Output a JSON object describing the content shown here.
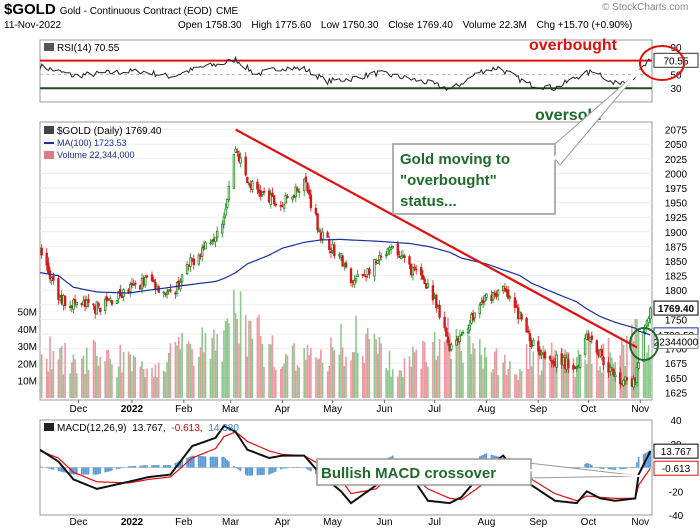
{
  "header": {
    "symbol": "$GOLD",
    "name": "Gold - Continuous Contract (EOD)",
    "exchange": "CME",
    "date": "11-Nov-2022",
    "open_label": "Open",
    "open": "1758.30",
    "high_label": "High",
    "high": "1775.60",
    "low_label": "Low",
    "low": "1750.30",
    "close_label": "Close",
    "close": "1769.40",
    "volume_label": "Volume",
    "volume": "22.3M",
    "change": "Chg +15.70 (+0.90%)",
    "watermark": "© StockCharts.com"
  },
  "chart_data": [
    {
      "type": "line",
      "panel": "rsi",
      "legend": "RSI(14) 70.55",
      "ylim": [
        10,
        100
      ],
      "ticks": [
        90,
        70,
        50,
        30
      ],
      "levels": [
        70,
        30
      ],
      "last_value_label": "70.55",
      "annotations": [
        "overbought",
        "oversold"
      ],
      "x": [
        "2021-11-11",
        "2021-12-01",
        "2021-12-20",
        "2022-01-10",
        "2022-01-28",
        "2022-02-15",
        "2022-03-01",
        "2022-03-08",
        "2022-03-20",
        "2022-04-05",
        "2022-04-18",
        "2022-05-02",
        "2022-05-16",
        "2022-06-01",
        "2022-06-15",
        "2022-07-01",
        "2022-07-15",
        "2022-08-01",
        "2022-08-12",
        "2022-08-30",
        "2022-09-15",
        "2022-10-01",
        "2022-10-10",
        "2022-10-20",
        "2022-11-01",
        "2022-11-11"
      ],
      "values": [
        62,
        48,
        52,
        55,
        47,
        60,
        66,
        72,
        50,
        60,
        58,
        40,
        44,
        52,
        46,
        38,
        28,
        54,
        60,
        36,
        30,
        50,
        55,
        36,
        46,
        70.55
      ]
    },
    {
      "type": "candlestick",
      "panel": "price",
      "legend": [
        "$GOLD (Daily) 1769.40",
        "MA(100) 1723.53",
        "Volume 22,344,000"
      ],
      "ylim": [
        1612,
        2088
      ],
      "ticks": [
        2075,
        2050,
        2025,
        2000,
        1975,
        1950,
        1925,
        1900,
        1875,
        1850,
        1825,
        1800,
        1775,
        1750,
        1725,
        1700,
        1675,
        1650,
        1625
      ],
      "x_labels": [
        "Dec",
        "2022",
        "Feb",
        "Mar",
        "Apr",
        "May",
        "Jun",
        "Jul",
        "Aug",
        "Sep",
        "Oct",
        "Nov"
      ],
      "x": [
        "2021-11-11",
        "2021-11-22",
        "2021-12-01",
        "2021-12-15",
        "2022-01-03",
        "2022-01-15",
        "2022-01-28",
        "2022-02-10",
        "2022-02-24",
        "2022-03-01",
        "2022-03-08",
        "2022-03-15",
        "2022-03-28",
        "2022-04-05",
        "2022-04-18",
        "2022-04-28",
        "2022-05-10",
        "2022-05-16",
        "2022-05-31",
        "2022-06-10",
        "2022-06-20",
        "2022-07-01",
        "2022-07-14",
        "2022-07-21",
        "2022-08-05",
        "2022-08-15",
        "2022-08-25",
        "2022-09-01",
        "2022-09-15",
        "2022-09-28",
        "2022-10-04",
        "2022-10-12",
        "2022-10-21",
        "2022-11-02",
        "2022-11-04",
        "2022-11-11"
      ],
      "close": [
        1868,
        1785,
        1778,
        1770,
        1800,
        1820,
        1790,
        1850,
        1900,
        1930,
        2045,
        1985,
        1955,
        1945,
        1990,
        1895,
        1855,
        1810,
        1845,
        1870,
        1840,
        1810,
        1705,
        1725,
        1790,
        1800,
        1755,
        1710,
        1680,
        1670,
        1730,
        1690,
        1650,
        1640,
        1680,
        1769.4
      ],
      "ma_100": {
        "name": "MA(100)",
        "last": "1723.53",
        "values": [
          1830,
          1825,
          1805,
          1797,
          1795,
          1800,
          1805,
          1810,
          1815,
          1820,
          1830,
          1845,
          1860,
          1872,
          1882,
          1886,
          1887,
          1886,
          1884,
          1882,
          1880,
          1875,
          1865,
          1855,
          1845,
          1835,
          1825,
          1812,
          1795,
          1780,
          1768,
          1755,
          1745,
          1735,
          1730,
          1723.53
        ]
      },
      "price_tag": "1769.40",
      "ma_tag": "1723.53",
      "volume_tag": "22344000",
      "volume_axis": {
        "ticks": [
          "50M",
          "40M",
          "30M",
          "20M",
          "10M"
        ],
        "max": 55
      },
      "volume": [
        22,
        28,
        18,
        25,
        20,
        15,
        22,
        30,
        28,
        35,
        50,
        40,
        30,
        28,
        25,
        22,
        30,
        35,
        28,
        22,
        20,
        30,
        35,
        28,
        22,
        20,
        18,
        25,
        22,
        20,
        30,
        25,
        28,
        32,
        35,
        22.3
      ],
      "trendline": {
        "from": {
          "x": "2022-03-08",
          "y": 2075
        },
        "to": {
          "x": "2022-11-03",
          "y": 1702
        }
      },
      "annotation": "Gold moving to \"overbought\" status..."
    },
    {
      "type": "line",
      "panel": "macd",
      "legend_name": "MACD(12,26,9)",
      "legend_values": [
        "13.767",
        "-0.613",
        "14.380"
      ],
      "ylim": [
        -40,
        40
      ],
      "ticks": [
        40,
        20,
        0,
        -20,
        -40
      ],
      "series": [
        {
          "name": "MACD",
          "last": "13.767",
          "values": [
            15,
            5,
            -10,
            -18,
            -12,
            -8,
            -6,
            18,
            25,
            35,
            30,
            15,
            8,
            10,
            10,
            -6,
            -20,
            -30,
            -15,
            5,
            -5,
            -28,
            -30,
            -25,
            0,
            10,
            -8,
            -15,
            -28,
            -30,
            -20,
            -26,
            -28,
            -26,
            -6,
            13.767
          ]
        },
        {
          "name": "Signal",
          "last": "-0.613",
          "values": [
            14,
            8,
            -4,
            -12,
            -13,
            -10,
            -8,
            8,
            16,
            26,
            30,
            22,
            14,
            11,
            10,
            2,
            -10,
            -22,
            -18,
            -5,
            -4,
            -18,
            -26,
            -27,
            -12,
            2,
            -3,
            -10,
            -22,
            -28,
            -24,
            -25,
            -26,
            -26,
            -15,
            -0.613
          ]
        }
      ],
      "histogram_last": "14.380",
      "annotation": "Bullish MACD crossover"
    }
  ]
}
